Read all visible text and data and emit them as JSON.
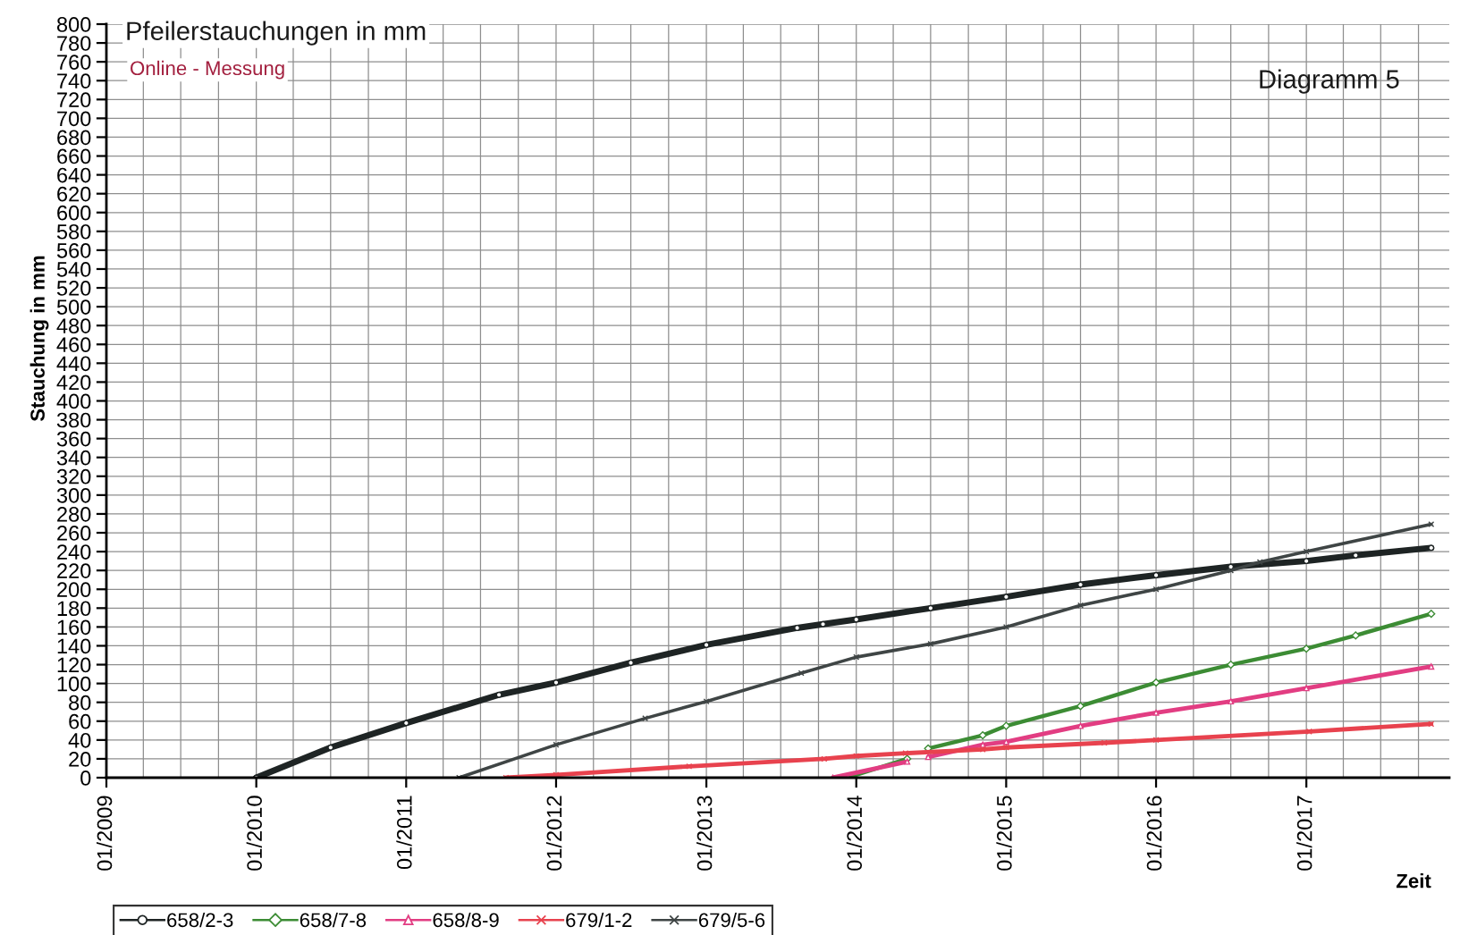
{
  "chart_data": {
    "type": "line",
    "title": "Pfeilerstauchungen in mm",
    "subtitle": "Online - Messung",
    "xlabel": "Zeit",
    "ylabel": "Stauchung in mm",
    "annotations": [
      "Diagramm 5"
    ],
    "series": [
      {
        "name": "658/2-3",
        "color": "#1e2424",
        "marker": "circle",
        "x": [
          "2010-01-01",
          "2010-07-01",
          "2011-01-01",
          "2011-08-15",
          "2012-01-01",
          "2012-07-01",
          "2013-01-01",
          "2013-08-10",
          "2013-10-12",
          "2014-01-01",
          "2014-07-01",
          "2015-01-01",
          "2015-07-01",
          "2016-01-01",
          "2016-07-01",
          "2017-01-01",
          "2017-05-01",
          "2017-11-01"
        ],
        "values": [
          0,
          32,
          58,
          88,
          101,
          122,
          141,
          159,
          163,
          168,
          180,
          192,
          205,
          215,
          224,
          230,
          236,
          244
        ]
      },
      {
        "name": "658/7-8",
        "color": "#3c8c34",
        "marker": "diamond",
        "x": [
          "2013-12-10",
          "2014-05-05",
          "2014-05-20",
          "2014-06-25",
          "2014-11-05",
          "2015-01-01",
          "2015-07-01",
          "2016-01-01",
          "2016-07-01",
          "2017-01-01",
          "2017-05-01",
          "2017-11-01"
        ],
        "values": [
          0,
          20,
          null,
          31,
          45,
          55,
          76,
          101,
          120,
          137,
          151,
          174
        ]
      },
      {
        "name": "658/8-9",
        "color": "#e23d82",
        "marker": "triangle",
        "x": [
          "2013-11-05",
          "2014-05-05",
          "2014-05-20",
          "2014-06-25",
          "2014-11-05",
          "2015-01-01",
          "2015-07-01",
          "2016-01-01",
          "2016-07-01",
          "2017-01-01",
          "2017-11-01"
        ],
        "values": [
          0,
          17,
          null,
          22,
          35,
          38,
          55,
          69,
          81,
          95,
          118
        ]
      },
      {
        "name": "679/1-2",
        "color": "#e8424e",
        "marker": "cross",
        "x": [
          "2011-09-01",
          "2012-01-01",
          "2012-11-20",
          "2013-10-15",
          "2014-01-01",
          "2014-05-01",
          "2014-11-05",
          "2015-01-01",
          "2015-08-28",
          "2016-01-01",
          "2017-01-08",
          "2017-11-01"
        ],
        "values": [
          0,
          3,
          12,
          20,
          23,
          26,
          30,
          32,
          37,
          40,
          49,
          57
        ]
      },
      {
        "name": "679/5-6",
        "color": "#3f4545",
        "marker": "cross",
        "x": [
          "2011-05-10",
          "2012-01-01",
          "2012-08-05",
          "2013-01-01",
          "2013-08-20",
          "2014-01-01",
          "2014-07-01",
          "2015-01-01",
          "2015-07-01",
          "2016-01-01",
          "2016-07-01",
          "2016-09-10",
          "2017-01-01",
          "2017-11-01"
        ],
        "values": [
          0,
          35,
          63,
          81,
          111,
          128,
          142,
          160,
          183,
          200,
          220,
          229,
          240,
          269
        ]
      }
    ],
    "xlim": [
      "2009-01-01",
      "2017-12-15"
    ],
    "xticks": [
      {
        "value": "2009-01-01",
        "label": "01/2009"
      },
      {
        "value": "2009-04-01",
        "label": null
      },
      {
        "value": "2009-07-01",
        "label": null
      },
      {
        "value": "2009-10-01",
        "label": null
      },
      {
        "value": "2010-01-01",
        "label": "01/2010"
      },
      {
        "value": "2010-04-01",
        "label": null
      },
      {
        "value": "2010-07-01",
        "label": null
      },
      {
        "value": "2010-10-01",
        "label": null
      },
      {
        "value": "2011-01-01",
        "label": "01/2011"
      },
      {
        "value": "2011-04-01",
        "label": null
      },
      {
        "value": "2011-07-01",
        "label": null
      },
      {
        "value": "2011-10-01",
        "label": null
      },
      {
        "value": "2012-01-01",
        "label": "01/2012"
      },
      {
        "value": "2012-04-01",
        "label": null
      },
      {
        "value": "2012-07-01",
        "label": null
      },
      {
        "value": "2012-10-01",
        "label": null
      },
      {
        "value": "2013-01-01",
        "label": "01/2013"
      },
      {
        "value": "2013-04-01",
        "label": null
      },
      {
        "value": "2013-07-01",
        "label": null
      },
      {
        "value": "2013-10-01",
        "label": null
      },
      {
        "value": "2014-01-01",
        "label": "01/2014"
      },
      {
        "value": "2014-04-01",
        "label": null
      },
      {
        "value": "2014-07-01",
        "label": null
      },
      {
        "value": "2014-10-01",
        "label": null
      },
      {
        "value": "2015-01-01",
        "label": "01/2015"
      },
      {
        "value": "2015-04-01",
        "label": null
      },
      {
        "value": "2015-07-01",
        "label": null
      },
      {
        "value": "2015-10-01",
        "label": null
      },
      {
        "value": "2016-01-01",
        "label": "01/2016"
      },
      {
        "value": "2016-04-01",
        "label": null
      },
      {
        "value": "2016-07-01",
        "label": null
      },
      {
        "value": "2016-10-01",
        "label": null
      },
      {
        "value": "2017-01-01",
        "label": "01/2017"
      },
      {
        "value": "2017-04-01",
        "label": null
      },
      {
        "value": "2017-07-01",
        "label": null
      },
      {
        "value": "2017-10-01",
        "label": null
      }
    ],
    "ylim": [
      0,
      800
    ],
    "yticks": [
      0,
      20,
      40,
      60,
      80,
      100,
      120,
      140,
      160,
      180,
      200,
      220,
      240,
      260,
      280,
      300,
      320,
      340,
      360,
      380,
      400,
      420,
      440,
      460,
      480,
      500,
      520,
      540,
      560,
      580,
      600,
      620,
      640,
      660,
      680,
      700,
      720,
      740,
      760,
      780,
      800
    ],
    "grid": true,
    "legend": "bottom left"
  }
}
